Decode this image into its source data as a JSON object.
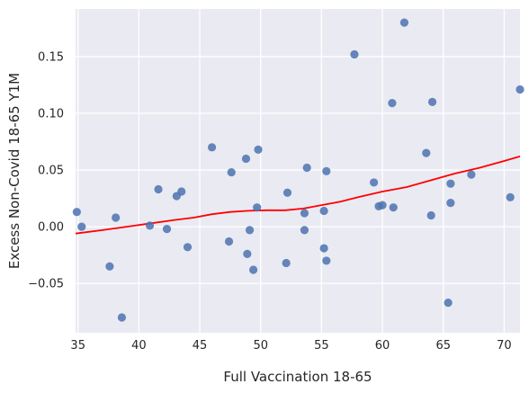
{
  "chart_data": {
    "type": "scatter",
    "xlabel": "Full Vaccination 18-65",
    "ylabel": "Excess Non-Covid 18-65 Y1M",
    "xlim": [
      34.8,
      71.3
    ],
    "ylim": [
      -0.0935,
      0.192
    ],
    "x_ticks": [
      35,
      40,
      45,
      50,
      55,
      60,
      65,
      70
    ],
    "y_ticks": [
      -0.05,
      0.0,
      0.05,
      0.1,
      0.15
    ],
    "x_tick_labels": [
      "35",
      "40",
      "45",
      "50",
      "55",
      "60",
      "65",
      "70"
    ],
    "y_tick_labels": [
      "−0.05",
      "0.00",
      "0.05",
      "0.10",
      "0.15"
    ],
    "grid": true,
    "colors": {
      "background": "#eaeaf2",
      "grid": "#ffffff",
      "points": "#4c72b0",
      "trend": "#ff0000"
    },
    "points": [
      {
        "x": 34.9,
        "y": 0.013
      },
      {
        "x": 35.3,
        "y": 0.0
      },
      {
        "x": 37.6,
        "y": -0.035
      },
      {
        "x": 38.1,
        "y": 0.008
      },
      {
        "x": 38.6,
        "y": -0.08
      },
      {
        "x": 40.9,
        "y": 0.001
      },
      {
        "x": 41.6,
        "y": 0.033
      },
      {
        "x": 42.3,
        "y": -0.002
      },
      {
        "x": 43.1,
        "y": 0.027
      },
      {
        "x": 43.5,
        "y": 0.031
      },
      {
        "x": 44.0,
        "y": -0.018
      },
      {
        "x": 46.0,
        "y": 0.07
      },
      {
        "x": 47.4,
        "y": -0.013
      },
      {
        "x": 47.6,
        "y": 0.048
      },
      {
        "x": 48.8,
        "y": 0.06
      },
      {
        "x": 48.9,
        "y": -0.024
      },
      {
        "x": 49.1,
        "y": -0.003
      },
      {
        "x": 49.4,
        "y": -0.038
      },
      {
        "x": 49.7,
        "y": 0.017
      },
      {
        "x": 49.8,
        "y": 0.068
      },
      {
        "x": 52.1,
        "y": -0.032
      },
      {
        "x": 52.2,
        "y": 0.03
      },
      {
        "x": 53.6,
        "y": 0.012
      },
      {
        "x": 53.6,
        "y": -0.003
      },
      {
        "x": 53.8,
        "y": 0.052
      },
      {
        "x": 55.2,
        "y": 0.014
      },
      {
        "x": 55.2,
        "y": -0.019
      },
      {
        "x": 55.4,
        "y": 0.049
      },
      {
        "x": 55.4,
        "y": -0.03
      },
      {
        "x": 57.7,
        "y": 0.152
      },
      {
        "x": 59.3,
        "y": 0.039
      },
      {
        "x": 59.7,
        "y": 0.018
      },
      {
        "x": 60.0,
        "y": 0.019
      },
      {
        "x": 60.8,
        "y": 0.109
      },
      {
        "x": 60.9,
        "y": 0.017
      },
      {
        "x": 61.8,
        "y": 0.18
      },
      {
        "x": 63.6,
        "y": 0.065
      },
      {
        "x": 64.0,
        "y": 0.01
      },
      {
        "x": 64.1,
        "y": 0.11
      },
      {
        "x": 65.4,
        "y": -0.067
      },
      {
        "x": 65.6,
        "y": 0.038
      },
      {
        "x": 65.6,
        "y": 0.021
      },
      {
        "x": 67.3,
        "y": 0.046
      },
      {
        "x": 70.5,
        "y": 0.026
      },
      {
        "x": 71.3,
        "y": 0.121
      }
    ],
    "trend_line": {
      "x": [
        34.8,
        37.0,
        39.0,
        41.0,
        43.0,
        44.5,
        46.0,
        47.5,
        49.0,
        50.5,
        52.0,
        53.5,
        55.0,
        56.5,
        58.0,
        60.0,
        62.0,
        64.0,
        66.0,
        68.0,
        70.0,
        71.3
      ],
      "y": [
        -0.006,
        -0.003,
        0.0,
        0.003,
        0.006,
        0.008,
        0.011,
        0.013,
        0.014,
        0.0145,
        0.0145,
        0.016,
        0.019,
        0.022,
        0.026,
        0.031,
        0.035,
        0.041,
        0.047,
        0.052,
        0.058,
        0.062
      ]
    }
  }
}
